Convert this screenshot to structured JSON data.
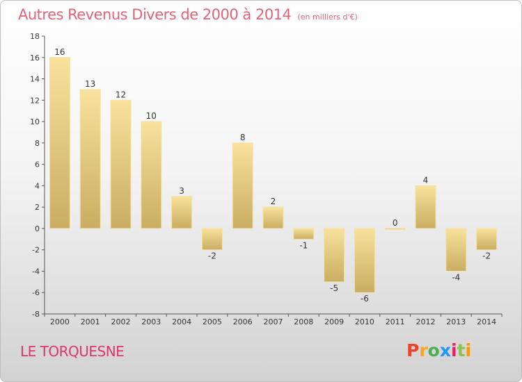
{
  "header": {
    "title": "Autres Revenus Divers de 2000 à 2014",
    "unit": "(en milliers d'€)"
  },
  "footer": {
    "commune": "LE TORQUESNE",
    "logo": "Proxiti"
  },
  "colors": {
    "title": "#e06478",
    "commune": "#e0346c",
    "bar_light": "#f8e29c",
    "bar_dark": "#c9ad62",
    "logo": [
      "#e8442e",
      "#f5a623",
      "#4caf50",
      "#2196f3",
      "#e91e63",
      "#8bc34a",
      "#ff9800"
    ]
  },
  "chart_data": {
    "type": "bar",
    "categories": [
      "2000",
      "2001",
      "2002",
      "2003",
      "2004",
      "2005",
      "2006",
      "2007",
      "2008",
      "2009",
      "2010",
      "2011",
      "2012",
      "2013",
      "2014"
    ],
    "values": [
      16,
      13,
      12,
      10,
      3,
      -2,
      8,
      2,
      -1,
      -5,
      -6,
      0,
      4,
      -4,
      -2
    ],
    "value_labels": [
      "16",
      "13",
      "12",
      "10",
      "3",
      "-2",
      "8",
      "2",
      "-1",
      "-5",
      "-6",
      "0",
      "4",
      "-4",
      "-2"
    ],
    "ylim": [
      -8,
      18
    ],
    "yticks": [
      -8,
      -6,
      -4,
      -2,
      0,
      2,
      4,
      6,
      8,
      10,
      12,
      14,
      16,
      18
    ],
    "grid": false,
    "legend": "none"
  }
}
